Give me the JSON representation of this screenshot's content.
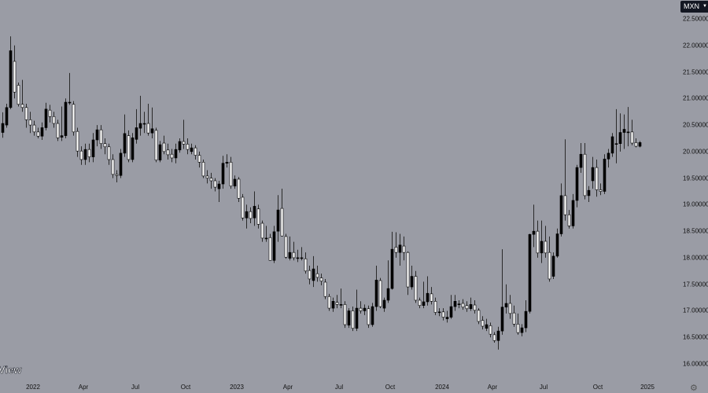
{
  "currency_selector": {
    "label": "MXN",
    "icon": "chevron-down-icon"
  },
  "logo_text": "View",
  "settings_icon": "gear-icon",
  "colors": {
    "background": "#9a9ca5",
    "up_body": "#000000",
    "down_body": "#ffffff",
    "wick": "#2a2a2a"
  },
  "chart_data": {
    "type": "candlestick",
    "title": "",
    "interval": "weekly",
    "ylim": [
      16.0,
      22.5
    ],
    "y_axis_position": "right",
    "grid": false,
    "y_ticks": [
      "22.50000",
      "22.00000",
      "21.50000",
      "21.00000",
      "20.50000",
      "20.00000",
      "19.50000",
      "19.00000",
      "18.50000",
      "18.00000",
      "17.50000",
      "17.00000",
      "16.50000",
      "16.00000"
    ],
    "x_ticks": [
      "2022",
      "Apr",
      "Jul",
      "Oct",
      "2023",
      "Apr",
      "Jul",
      "Oct",
      "2024",
      "Apr",
      "Jul",
      "Oct",
      "2025"
    ],
    "ohlc_fields": [
      "open",
      "high",
      "low",
      "close"
    ],
    "candles": [
      [
        20.36,
        20.74,
        20.26,
        20.53
      ],
      [
        20.5,
        20.9,
        20.45,
        20.83
      ],
      [
        20.83,
        22.17,
        20.8,
        21.9
      ],
      [
        21.7,
        22.0,
        21.0,
        21.12
      ],
      [
        21.25,
        21.3,
        20.85,
        20.89
      ],
      [
        20.89,
        21.35,
        20.75,
        20.83
      ],
      [
        20.83,
        20.9,
        20.45,
        20.6
      ],
      [
        20.6,
        20.75,
        20.35,
        20.5
      ],
      [
        20.5,
        20.58,
        20.3,
        20.37
      ],
      [
        20.37,
        20.45,
        20.25,
        20.29
      ],
      [
        20.29,
        20.55,
        20.22,
        20.45
      ],
      [
        20.45,
        20.92,
        20.4,
        20.8
      ],
      [
        20.78,
        20.88,
        20.55,
        20.66
      ],
      [
        20.66,
        20.75,
        20.45,
        20.53
      ],
      [
        20.53,
        20.6,
        20.2,
        20.26
      ],
      [
        20.27,
        20.85,
        20.2,
        20.3
      ],
      [
        20.3,
        21.0,
        20.25,
        20.93
      ],
      [
        20.93,
        21.48,
        20.88,
        20.93
      ],
      [
        20.89,
        20.95,
        20.3,
        20.37
      ],
      [
        20.38,
        20.45,
        19.9,
        20.01
      ],
      [
        20.01,
        20.1,
        19.75,
        19.85
      ],
      [
        19.85,
        20.15,
        19.75,
        20.04
      ],
      [
        20.04,
        20.15,
        19.8,
        19.9
      ],
      [
        19.9,
        20.35,
        19.8,
        20.22
      ],
      [
        20.22,
        20.5,
        20.1,
        20.41
      ],
      [
        20.41,
        20.5,
        20.05,
        20.15
      ],
      [
        20.15,
        20.25,
        19.95,
        20.09
      ],
      [
        20.09,
        20.15,
        19.75,
        19.85
      ],
      [
        19.85,
        19.95,
        19.5,
        19.57
      ],
      [
        19.57,
        19.65,
        19.42,
        19.55
      ],
      [
        19.55,
        20.05,
        19.5,
        19.97
      ],
      [
        19.97,
        20.7,
        19.9,
        20.34
      ],
      [
        20.3,
        20.4,
        19.8,
        19.85
      ],
      [
        19.85,
        20.35,
        19.8,
        20.26
      ],
      [
        20.23,
        20.8,
        20.15,
        20.45
      ],
      [
        20.44,
        21.05,
        20.3,
        20.53
      ],
      [
        20.53,
        20.75,
        20.35,
        20.53
      ],
      [
        20.53,
        20.9,
        20.3,
        20.35
      ],
      [
        20.35,
        20.83,
        20.25,
        20.43
      ],
      [
        20.4,
        20.45,
        19.8,
        19.84
      ],
      [
        19.84,
        20.2,
        19.8,
        20.13
      ],
      [
        20.16,
        20.3,
        19.95,
        20.0
      ],
      [
        20.03,
        20.15,
        19.85,
        19.94
      ],
      [
        19.95,
        20.05,
        19.8,
        19.88
      ],
      [
        19.88,
        20.15,
        19.78,
        20.04
      ],
      [
        20.03,
        20.25,
        19.98,
        20.19
      ],
      [
        20.19,
        20.6,
        20.05,
        20.14
      ],
      [
        20.14,
        20.25,
        19.95,
        20.04
      ],
      [
        20.0,
        20.15,
        19.95,
        20.07
      ],
      [
        20.07,
        20.12,
        19.85,
        19.93
      ],
      [
        19.93,
        20.0,
        19.7,
        19.8
      ],
      [
        19.8,
        19.85,
        19.5,
        19.54
      ],
      [
        19.54,
        19.65,
        19.4,
        19.5
      ],
      [
        19.5,
        19.6,
        19.3,
        19.45
      ],
      [
        19.45,
        19.5,
        19.25,
        19.33
      ],
      [
        19.3,
        19.45,
        19.05,
        19.39
      ],
      [
        19.39,
        19.92,
        19.3,
        19.78
      ],
      [
        19.78,
        19.95,
        19.7,
        19.8
      ],
      [
        19.8,
        19.9,
        19.3,
        19.35
      ],
      [
        19.35,
        19.55,
        19.3,
        19.48
      ],
      [
        19.48,
        19.52,
        19.05,
        19.12
      ],
      [
        19.14,
        19.2,
        18.7,
        18.75
      ],
      [
        18.75,
        19.0,
        18.55,
        18.87
      ],
      [
        18.87,
        18.95,
        18.65,
        18.74
      ],
      [
        18.75,
        19.25,
        18.6,
        18.97
      ],
      [
        18.92,
        19.0,
        18.55,
        18.63
      ],
      [
        18.65,
        18.7,
        18.3,
        18.37
      ],
      [
        18.37,
        18.6,
        18.3,
        18.37
      ],
      [
        18.38,
        18.45,
        17.95,
        17.95
      ],
      [
        17.95,
        18.6,
        17.9,
        18.49
      ],
      [
        18.5,
        19.18,
        18.3,
        18.9
      ],
      [
        18.93,
        19.3,
        18.4,
        18.41
      ],
      [
        18.4,
        18.45,
        17.98,
        18.01
      ],
      [
        17.99,
        18.4,
        17.95,
        18.1
      ],
      [
        18.1,
        18.3,
        17.95,
        18.0
      ],
      [
        18.0,
        18.15,
        17.92,
        18.0
      ],
      [
        18.0,
        18.2,
        17.95,
        18.0
      ],
      [
        17.98,
        18.1,
        17.7,
        17.75
      ],
      [
        17.76,
        17.85,
        17.5,
        17.6
      ],
      [
        17.57,
        18.03,
        17.45,
        17.79
      ],
      [
        17.7,
        17.85,
        17.55,
        17.63
      ],
      [
        17.62,
        17.7,
        17.48,
        17.56
      ],
      [
        17.54,
        17.6,
        17.22,
        17.27
      ],
      [
        17.27,
        17.32,
        17.0,
        17.05
      ],
      [
        17.05,
        17.25,
        16.98,
        17.18
      ],
      [
        17.16,
        17.3,
        17.05,
        17.12
      ],
      [
        17.12,
        17.42,
        17.05,
        17.12
      ],
      [
        17.12,
        17.18,
        16.68,
        16.74
      ],
      [
        16.73,
        17.05,
        16.68,
        17.0
      ],
      [
        17.0,
        17.08,
        16.62,
        16.67
      ],
      [
        16.67,
        17.4,
        16.62,
        17.05
      ],
      [
        17.05,
        17.18,
        16.95,
        17.0
      ],
      [
        17.0,
        17.12,
        16.92,
        17.05
      ],
      [
        17.04,
        17.1,
        16.68,
        16.74
      ],
      [
        16.74,
        17.15,
        16.7,
        17.08
      ],
      [
        17.08,
        17.85,
        17.0,
        17.58
      ],
      [
        17.57,
        17.62,
        17.05,
        17.08
      ],
      [
        17.05,
        17.25,
        16.98,
        17.2
      ],
      [
        17.2,
        17.95,
        17.15,
        17.42
      ],
      [
        17.42,
        18.49,
        17.4,
        18.16
      ],
      [
        18.2,
        18.48,
        18.0,
        18.1
      ],
      [
        18.1,
        18.45,
        17.85,
        18.24
      ],
      [
        18.22,
        18.4,
        17.95,
        18.1
      ],
      [
        18.1,
        18.12,
        17.3,
        17.45
      ],
      [
        17.45,
        17.85,
        17.4,
        17.65
      ],
      [
        17.65,
        17.75,
        17.15,
        17.2
      ],
      [
        17.2,
        17.25,
        17.05,
        17.1
      ],
      [
        17.1,
        17.55,
        17.05,
        17.17
      ],
      [
        17.17,
        17.65,
        17.1,
        17.33
      ],
      [
        17.32,
        17.45,
        17.12,
        17.18
      ],
      [
        17.18,
        17.25,
        16.92,
        16.97
      ],
      [
        16.98,
        17.05,
        16.9,
        16.98
      ],
      [
        16.98,
        17.05,
        16.82,
        16.88
      ],
      [
        16.85,
        17.0,
        16.78,
        16.88
      ],
      [
        16.88,
        17.3,
        16.85,
        17.08
      ],
      [
        17.08,
        17.3,
        17.0,
        17.18
      ],
      [
        17.13,
        17.2,
        17.05,
        17.13
      ],
      [
        17.14,
        17.22,
        17.02,
        17.07
      ],
      [
        17.1,
        17.18,
        16.98,
        17.04
      ],
      [
        17.04,
        17.25,
        17.0,
        17.12
      ],
      [
        17.11,
        17.2,
        16.95,
        17.01
      ],
      [
        17.01,
        17.05,
        16.75,
        16.8
      ],
      [
        16.82,
        16.9,
        16.65,
        16.71
      ],
      [
        16.67,
        16.85,
        16.62,
        16.74
      ],
      [
        16.72,
        16.78,
        16.5,
        16.56
      ],
      [
        16.55,
        16.6,
        16.4,
        16.44
      ],
      [
        16.44,
        16.7,
        16.27,
        16.62
      ],
      [
        16.62,
        18.16,
        16.55,
        17.07
      ],
      [
        17.07,
        17.5,
        16.95,
        17.14
      ],
      [
        17.14,
        17.3,
        16.85,
        16.95
      ],
      [
        16.96,
        17.1,
        16.7,
        16.75
      ],
      [
        16.75,
        16.95,
        16.55,
        16.59
      ],
      [
        16.59,
        16.75,
        16.52,
        16.68
      ],
      [
        16.68,
        17.2,
        16.6,
        16.99
      ],
      [
        16.99,
        18.45,
        16.95,
        18.44
      ],
      [
        18.44,
        19.0,
        18.2,
        18.5
      ],
      [
        18.5,
        18.7,
        18.0,
        18.09
      ],
      [
        18.09,
        18.7,
        17.9,
        18.31
      ],
      [
        18.31,
        18.6,
        18.0,
        18.09
      ],
      [
        18.1,
        18.4,
        17.55,
        17.6
      ],
      [
        17.65,
        18.1,
        17.6,
        18.03
      ],
      [
        18.03,
        18.55,
        18.0,
        18.45
      ],
      [
        18.45,
        19.4,
        18.4,
        19.17
      ],
      [
        19.17,
        20.23,
        18.7,
        18.81
      ],
      [
        18.81,
        18.9,
        18.55,
        18.6
      ],
      [
        18.6,
        19.2,
        18.55,
        19.08
      ],
      [
        19.08,
        19.75,
        18.95,
        19.7
      ],
      [
        19.7,
        20.16,
        19.6,
        19.95
      ],
      [
        19.95,
        20.16,
        19.1,
        19.17
      ],
      [
        19.17,
        19.35,
        19.05,
        19.27
      ],
      [
        19.45,
        19.9,
        19.3,
        19.7
      ],
      [
        19.7,
        19.85,
        19.15,
        19.28
      ],
      [
        19.28,
        19.4,
        19.18,
        19.25
      ],
      [
        19.25,
        19.95,
        19.2,
        19.86
      ],
      [
        19.86,
        20.05,
        19.7,
        19.97
      ],
      [
        19.97,
        20.35,
        19.9,
        20.28
      ],
      [
        20.15,
        20.8,
        19.78,
        20.15
      ],
      [
        20.15,
        20.72,
        20.0,
        20.36
      ],
      [
        20.36,
        20.7,
        20.05,
        20.42
      ],
      [
        20.37,
        20.84,
        20.1,
        20.37
      ],
      [
        20.37,
        20.6,
        20.12,
        20.16
      ],
      [
        20.17,
        20.25,
        20.08,
        20.1
      ],
      [
        20.1,
        20.2,
        20.08,
        20.17
      ]
    ]
  }
}
